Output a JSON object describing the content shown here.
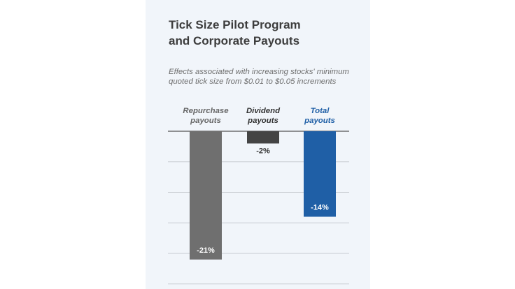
{
  "title_line1": "Tick Size Pilot Program",
  "title_line2": "and Corporate Payouts",
  "subtitle_line1": "Effects associated with increasing stocks' minimum",
  "subtitle_line2": "quoted tick size from $0.01 to $0.05 increments",
  "chart_data": {
    "type": "bar",
    "title": "Tick Size Pilot Program and Corporate Payouts",
    "subtitle": "Effects associated with increasing stocks' minimum quoted tick size from $0.01 to $0.05 increments",
    "categories": [
      {
        "line1": "Repurchase",
        "line2": "payouts"
      },
      {
        "line1": "Dividend",
        "line2": "payouts"
      },
      {
        "line1": "Total",
        "line2": "payouts"
      }
    ],
    "values": [
      -21,
      -2,
      -14
    ],
    "value_labels": [
      "-21%",
      "-2%",
      "-14%"
    ],
    "bar_colors": [
      "#6f6f6f",
      "#444444",
      "#1f5fa6"
    ],
    "category_label_colors": [
      "#666666",
      "#333333",
      "#1f5fa6"
    ],
    "value_label_colors": [
      "#ffffff",
      "#333333",
      "#ffffff"
    ],
    "ylim": [
      -25,
      0
    ],
    "grid": true,
    "grid_step": 5,
    "xlabel": "",
    "ylabel": ""
  }
}
